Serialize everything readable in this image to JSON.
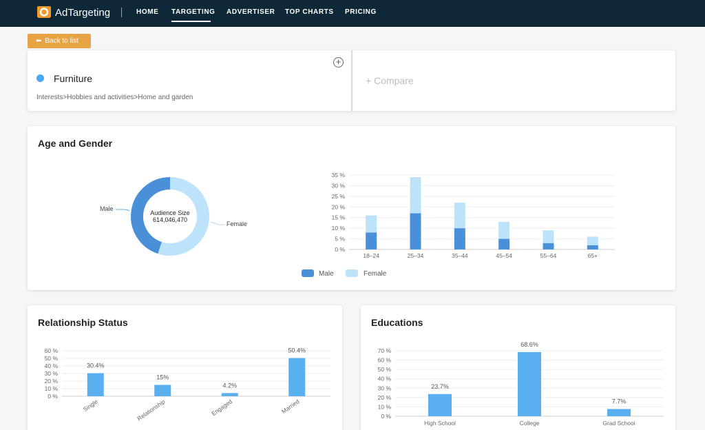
{
  "nav": {
    "brand": "AdTargeting",
    "items": [
      "HOME",
      "TARGETING",
      "ADVERTISER",
      "TOP CHARTS",
      "PRICING"
    ],
    "active": "TARGETING"
  },
  "back_button": "Back to list",
  "interest": {
    "title": "Furniture",
    "path": "Interests>Hobbies and activities>Home and garden",
    "add_symbol": "+",
    "compare": "+ Compare"
  },
  "age_gender": {
    "title": "Age and Gender",
    "center_label": "Audience Size",
    "center_value": "614,046,470",
    "male_label": "Male",
    "female_label": "Female"
  },
  "relationship": {
    "title": "Relationship Status"
  },
  "educations": {
    "title": "Educations"
  },
  "colors": {
    "male": "#4a90d9",
    "female": "#bde3fa",
    "bar": "#5aaff0",
    "nav": "#0e2838",
    "accent": "#e8a444"
  },
  "chart_data": [
    {
      "type": "pie",
      "subtype": "donut",
      "title": "Age and Gender",
      "categories": [
        "Male",
        "Female"
      ],
      "values": [
        45,
        55
      ],
      "center_text": [
        "Audience Size",
        "614,046,470"
      ]
    },
    {
      "type": "bar",
      "stacked": true,
      "categories": [
        "18–24",
        "25–34",
        "35–44",
        "45–54",
        "55–64",
        "65+"
      ],
      "series": [
        {
          "name": "Male",
          "values": [
            8,
            17,
            10,
            5,
            3,
            2
          ]
        },
        {
          "name": "Female",
          "values": [
            8,
            17,
            12,
            8,
            6,
            4
          ]
        }
      ],
      "ylim": [
        0,
        35
      ],
      "yticks": [
        "0 %",
        "5 %",
        "10 %",
        "15 %",
        "20 %",
        "25 %",
        "30 %",
        "35 %"
      ],
      "legend": "bottom"
    },
    {
      "type": "bar",
      "title": "Relationship Status",
      "categories": [
        "Single",
        "Relationship",
        "Engaged",
        "Married"
      ],
      "values": [
        30.4,
        15,
        4.2,
        50.4
      ],
      "data_labels": [
        "30.4%",
        "15%",
        "4.2%",
        "50.4%"
      ],
      "ylim": [
        0,
        60
      ],
      "yticks": [
        "0 %",
        "10 %",
        "20 %",
        "30 %",
        "40 %",
        "50 %",
        "60 %"
      ]
    },
    {
      "type": "bar",
      "title": "Educations",
      "categories": [
        "High School",
        "College",
        "Grad School"
      ],
      "values": [
        23.7,
        68.6,
        7.7
      ],
      "data_labels": [
        "23.7%",
        "68.6%",
        "7.7%"
      ],
      "ylim": [
        0,
        70
      ],
      "yticks": [
        "0 %",
        "10 %",
        "20 %",
        "30 %",
        "40 %",
        "50 %",
        "60 %",
        "70 %"
      ]
    }
  ]
}
